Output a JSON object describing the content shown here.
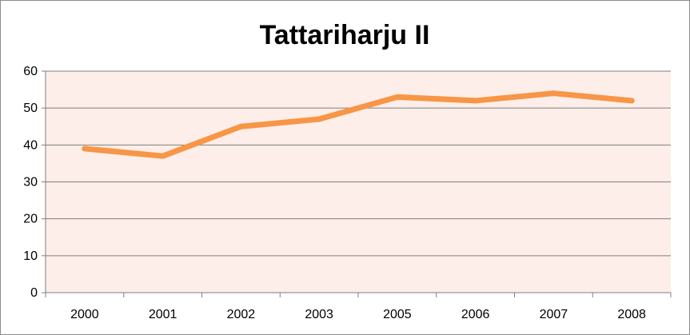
{
  "chart_data": {
    "type": "line",
    "title": "Tattariharju II",
    "xlabel": "",
    "ylabel": "",
    "categories": [
      "2000",
      "2001",
      "2002",
      "2003",
      "2005",
      "2006",
      "2007",
      "2008"
    ],
    "series": [
      {
        "values": [
          39,
          37,
          45,
          47,
          53,
          52,
          54,
          52
        ]
      }
    ],
    "ylim": [
      0,
      60
    ],
    "yticks": [
      0,
      10,
      20,
      30,
      40,
      50,
      60
    ],
    "grid": true,
    "legend": "none",
    "colors": {
      "line": "#f79646",
      "plot_background": "#fdeee9",
      "gridline": "#7f7f7f"
    }
  }
}
